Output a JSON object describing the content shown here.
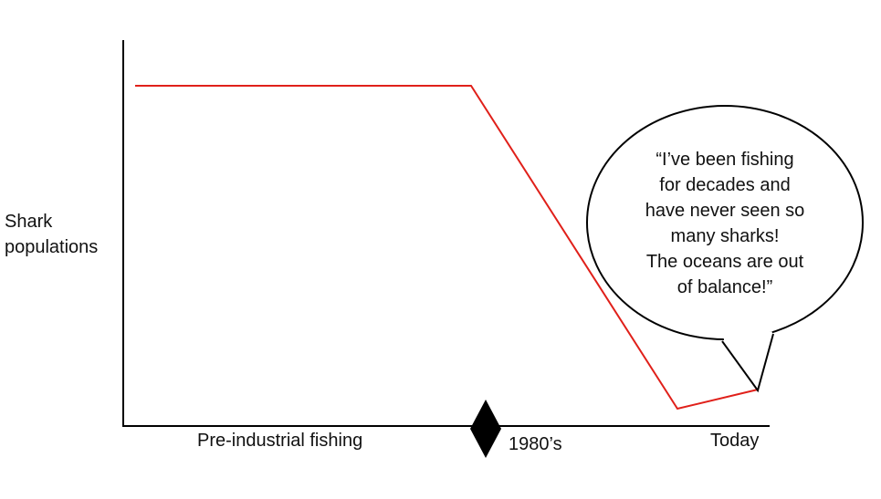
{
  "y_axis_label": [
    "Shark",
    "populations"
  ],
  "x_markers": {
    "start": "Pre-industrial fishing",
    "middle": "1980’s",
    "end": "Today"
  },
  "speech_bubble": {
    "lines": [
      "“I’ve been fishing",
      "for decades and",
      "have never seen so",
      "many sharks!",
      "The oceans are out",
      "of balance!”"
    ]
  },
  "colors": {
    "trend_line": "#e0201a",
    "axes": "#000000",
    "marker": "#000000"
  }
}
